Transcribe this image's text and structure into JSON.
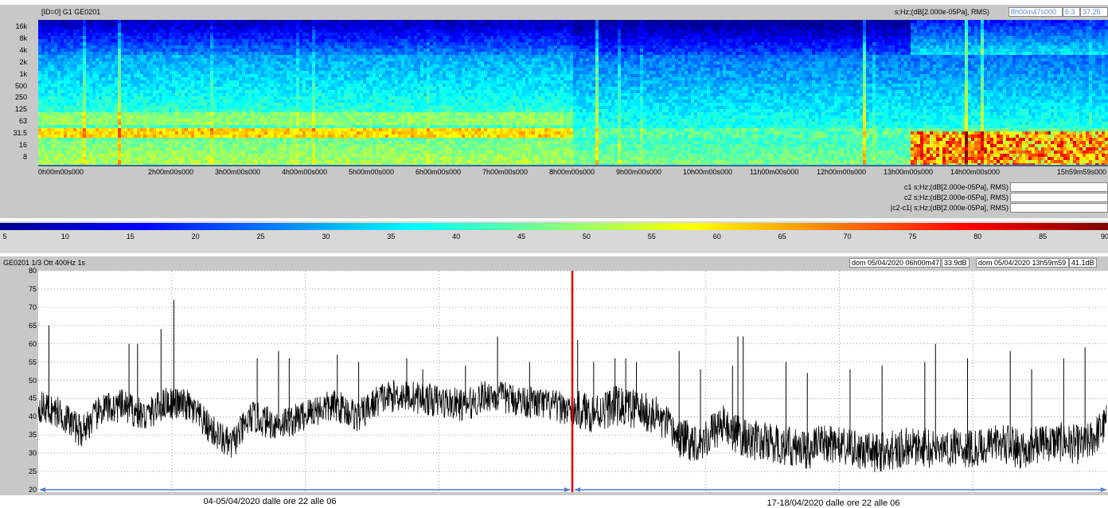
{
  "spectrogram": {
    "title": "[ID=0] G1 GE0201",
    "units_label": "s;Hz;(dB[2.000e-05Pa], RMS)",
    "cursor_time": "8h00m47s000",
    "cursor_val1": "6.3",
    "cursor_val2": "37.25",
    "freq_ticks": [
      "16k",
      "8k",
      "4k",
      "2k",
      "1k",
      "500",
      "250",
      "125",
      "63",
      "31.5",
      "16",
      "8"
    ],
    "time_ticks": [
      {
        "label": "0h00m00s000",
        "pos": 0.0
      },
      {
        "label": "2h00m00s000",
        "pos": 0.125
      },
      {
        "label": "3h00m00s000",
        "pos": 0.1875
      },
      {
        "label": "4h00m00s000",
        "pos": 0.25
      },
      {
        "label": "5h00m00s000",
        "pos": 0.3125
      },
      {
        "label": "6h00m00s000",
        "pos": 0.375
      },
      {
        "label": "7h00m00s000",
        "pos": 0.4375
      },
      {
        "label": "8h00m00s000",
        "pos": 0.5
      },
      {
        "label": "9h00m00s000",
        "pos": 0.5625
      },
      {
        "label": "10h00m00s000",
        "pos": 0.625
      },
      {
        "label": "11h00m00s000",
        "pos": 0.6875
      },
      {
        "label": "12h00m00s000",
        "pos": 0.75
      },
      {
        "label": "13h00m00s000",
        "pos": 0.8125
      },
      {
        "label": "14h00m00s000",
        "pos": 0.875
      },
      {
        "label": "15h59m59s000",
        "pos": 1.0
      }
    ],
    "cursor_rows": [
      {
        "label": "c1  s;Hz;(dB[2.000e-05Pa], RMS)"
      },
      {
        "label": "c2  s;Hz;(dB[2.000e-05Pa], RMS)"
      },
      {
        "label": "|c2-c1|  s;Hz;(dB[2.000e-05Pa], RMS)"
      }
    ]
  },
  "colorbar": {
    "min": 5,
    "max": 90,
    "labels": [
      "5",
      "10",
      "15",
      "20",
      "25",
      "30",
      "35",
      "40",
      "45",
      "50",
      "55",
      "60",
      "65",
      "70",
      "75",
      "80",
      "85",
      "90"
    ],
    "colors": [
      "#00008f",
      "#0000ff",
      "#0080ff",
      "#00ffff",
      "#80ff80",
      "#ffff00",
      "#ff8000",
      "#ff0000",
      "#800000"
    ]
  },
  "level": {
    "header": "GE0201   1/3 Ott 400Hz 1s",
    "cursor1_time": "dom 05/04/2020 06h00m47",
    "cursor1_val": "33.9dB",
    "cursor2_time": "dom 05/04/2020 13h59m59",
    "cursor2_val": "41.1dB",
    "divider_color": "#e00000",
    "arrow_color": "#4a7fd0",
    "period1_label": "04-05/04/2020 dalle ore 22 alle 06",
    "period2_label": "17-18/04/2020 dalle ore 22 alle 06"
  },
  "chart_data": [
    {
      "type": "heatmap",
      "title": "[ID=0] G1 GE0201",
      "xlabel": "",
      "ylabel": "",
      "x_ticks": [
        "0h00m00s000",
        "2h00m00s000",
        "3h00m00s000",
        "4h00m00s000",
        "5h00m00s000",
        "6h00m00s000",
        "7h00m00s000",
        "8h00m00s000",
        "9h00m00s000",
        "10h00m00s000",
        "11h00m00s000",
        "12h00m00s000",
        "13h00m00s000",
        "14h00m00s000",
        "15h59m59s000"
      ],
      "y_ticks": [
        "16k",
        "8k",
        "4k",
        "2k",
        "1k",
        "500",
        "250",
        "125",
        "63",
        "31.5",
        "16",
        "8"
      ],
      "color_range": [
        5,
        90
      ]
    },
    {
      "type": "line",
      "title": "GE0201   1/3 Ott 400Hz 1s",
      "ylim": [
        20,
        80
      ],
      "y_ticks": [
        20,
        25,
        30,
        35,
        40,
        45,
        50,
        55,
        60,
        65,
        70,
        75,
        80
      ],
      "grid": true,
      "divider_fraction": 0.5,
      "series": [
        {
          "x": [
            0,
            0.02,
            0.04,
            0.06,
            0.08,
            0.1,
            0.12,
            0.14,
            0.16,
            0.18,
            0.2,
            0.22,
            0.24,
            0.26,
            0.28,
            0.3,
            0.32,
            0.34,
            0.36,
            0.38,
            0.4,
            0.42,
            0.44,
            0.46,
            0.48,
            0.5,
            0.52,
            0.54,
            0.56,
            0.58,
            0.6,
            0.62,
            0.64,
            0.66,
            0.68,
            0.7,
            0.72,
            0.74,
            0.76,
            0.78,
            0.8,
            0.82,
            0.84,
            0.86,
            0.88,
            0.9,
            0.92,
            0.94,
            0.96,
            0.98,
            1.0
          ],
          "values": [
            43,
            41,
            36,
            42,
            43,
            40,
            44,
            43,
            37,
            32,
            40,
            38,
            39,
            42,
            43,
            40,
            45,
            46,
            45,
            44,
            43,
            46,
            45,
            44,
            43,
            42,
            41,
            43,
            42,
            40,
            34,
            33,
            38,
            34,
            33,
            32,
            31,
            33,
            31,
            30,
            31,
            32,
            31,
            32,
            31,
            33,
            31,
            33,
            33,
            32,
            38
          ]
        }
      ],
      "peaks": [
        {
          "x": 0.01,
          "y": 65
        },
        {
          "x": 0.085,
          "y": 60
        },
        {
          "x": 0.093,
          "y": 60
        },
        {
          "x": 0.115,
          "y": 64
        },
        {
          "x": 0.127,
          "y": 72
        },
        {
          "x": 0.205,
          "y": 56
        },
        {
          "x": 0.225,
          "y": 58
        },
        {
          "x": 0.235,
          "y": 56
        },
        {
          "x": 0.28,
          "y": 57
        },
        {
          "x": 0.3,
          "y": 55
        },
        {
          "x": 0.345,
          "y": 56
        },
        {
          "x": 0.36,
          "y": 53
        },
        {
          "x": 0.4,
          "y": 54
        },
        {
          "x": 0.43,
          "y": 62
        },
        {
          "x": 0.46,
          "y": 55
        },
        {
          "x": 0.52,
          "y": 55
        },
        {
          "x": 0.55,
          "y": 56
        },
        {
          "x": 0.56,
          "y": 55
        },
        {
          "x": 0.505,
          "y": 61
        },
        {
          "x": 0.54,
          "y": 56
        },
        {
          "x": 0.6,
          "y": 58
        },
        {
          "x": 0.62,
          "y": 53
        },
        {
          "x": 0.65,
          "y": 54
        },
        {
          "x": 0.655,
          "y": 62
        },
        {
          "x": 0.66,
          "y": 62
        },
        {
          "x": 0.7,
          "y": 55
        },
        {
          "x": 0.72,
          "y": 52
        },
        {
          "x": 0.76,
          "y": 53
        },
        {
          "x": 0.79,
          "y": 54
        },
        {
          "x": 0.83,
          "y": 55
        },
        {
          "x": 0.84,
          "y": 60
        },
        {
          "x": 0.87,
          "y": 56
        },
        {
          "x": 0.91,
          "y": 58
        },
        {
          "x": 0.93,
          "y": 53
        },
        {
          "x": 0.96,
          "y": 56
        },
        {
          "x": 0.98,
          "y": 59
        }
      ]
    }
  ]
}
